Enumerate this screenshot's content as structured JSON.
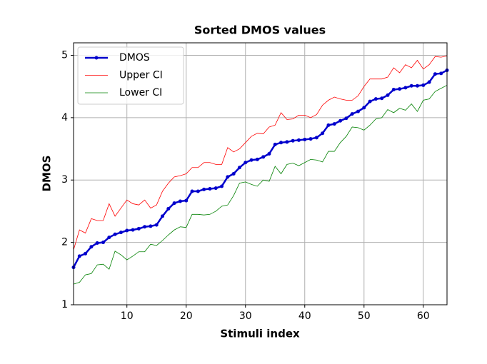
{
  "chart_data": {
    "type": "line",
    "title": "Sorted DMOS values",
    "xlabel": "Stimuli index",
    "ylabel": "DMOS",
    "x": [
      1,
      2,
      3,
      4,
      5,
      6,
      7,
      8,
      9,
      10,
      11,
      12,
      13,
      14,
      15,
      16,
      17,
      18,
      19,
      20,
      21,
      22,
      23,
      24,
      25,
      26,
      27,
      28,
      29,
      30,
      31,
      32,
      33,
      34,
      35,
      36,
      37,
      38,
      39,
      40,
      41,
      42,
      43,
      44,
      45,
      46,
      47,
      48,
      49,
      50,
      51,
      52,
      53,
      54,
      55,
      56,
      57,
      58,
      59,
      60,
      61,
      62,
      63,
      64
    ],
    "series": [
      {
        "name": "DMOS",
        "color": "#0000cc",
        "markers": true,
        "values": [
          1.6,
          1.78,
          1.82,
          1.93,
          1.99,
          2.0,
          2.08,
          2.13,
          2.16,
          2.19,
          2.2,
          2.22,
          2.25,
          2.26,
          2.28,
          2.42,
          2.54,
          2.63,
          2.66,
          2.67,
          2.82,
          2.82,
          2.85,
          2.86,
          2.87,
          2.9,
          3.05,
          3.1,
          3.2,
          3.28,
          3.32,
          3.33,
          3.37,
          3.42,
          3.57,
          3.6,
          3.61,
          3.63,
          3.64,
          3.65,
          3.66,
          3.68,
          3.75,
          3.88,
          3.9,
          3.95,
          3.99,
          4.06,
          4.1,
          4.16,
          4.26,
          4.3,
          4.31,
          4.36,
          4.45,
          4.46,
          4.48,
          4.51,
          4.51,
          4.52,
          4.57,
          4.7,
          4.71,
          4.76
        ]
      },
      {
        "name": "Upper CI",
        "color": "#ff0000",
        "markers": false,
        "values": [
          1.88,
          2.2,
          2.15,
          2.38,
          2.35,
          2.35,
          2.62,
          2.42,
          2.55,
          2.68,
          2.62,
          2.6,
          2.68,
          2.55,
          2.6,
          2.82,
          2.95,
          3.05,
          3.07,
          3.1,
          3.2,
          3.2,
          3.28,
          3.28,
          3.25,
          3.25,
          3.52,
          3.45,
          3.5,
          3.6,
          3.7,
          3.75,
          3.74,
          3.85,
          3.88,
          4.08,
          3.97,
          3.98,
          4.04,
          4.04,
          4.0,
          4.05,
          4.2,
          4.28,
          4.33,
          4.3,
          4.28,
          4.28,
          4.35,
          4.5,
          4.62,
          4.62,
          4.62,
          4.65,
          4.8,
          4.72,
          4.85,
          4.8,
          4.92,
          4.78,
          4.85,
          4.98,
          4.97,
          4.99
        ]
      },
      {
        "name": "Lower CI",
        "color": "#008000",
        "markers": false,
        "values": [
          1.33,
          1.36,
          1.48,
          1.5,
          1.64,
          1.65,
          1.57,
          1.86,
          1.8,
          1.72,
          1.78,
          1.85,
          1.85,
          1.97,
          1.95,
          2.03,
          2.12,
          2.2,
          2.25,
          2.24,
          2.45,
          2.45,
          2.44,
          2.45,
          2.5,
          2.58,
          2.6,
          2.75,
          2.95,
          2.97,
          2.93,
          2.9,
          3.0,
          2.98,
          3.22,
          3.1,
          3.25,
          3.27,
          3.23,
          3.28,
          3.33,
          3.32,
          3.29,
          3.46,
          3.46,
          3.6,
          3.7,
          3.85,
          3.84,
          3.8,
          3.88,
          3.98,
          4.0,
          4.13,
          4.08,
          4.15,
          4.12,
          4.22,
          4.1,
          4.28,
          4.3,
          4.42,
          4.47,
          4.52
        ]
      }
    ],
    "xlim": [
      1,
      64
    ],
    "xticks": [
      10,
      20,
      30,
      40,
      50,
      60
    ],
    "ylim": [
      1,
      5.2
    ],
    "yticks": [
      1,
      2,
      3,
      4,
      5
    ],
    "grid": true,
    "legend": "upper left"
  }
}
